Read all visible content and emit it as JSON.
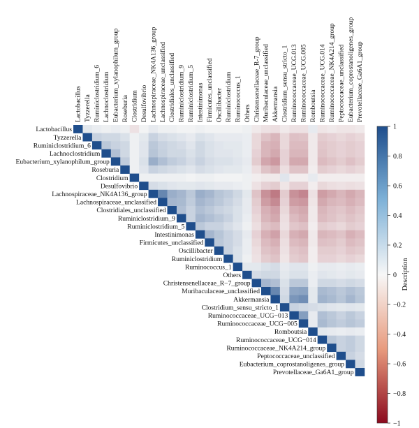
{
  "chart_data": {
    "type": "heatmap",
    "title": "",
    "colorbar_label": "Description",
    "value_range": [
      -1,
      1
    ],
    "colorbar_ticks": [
      1,
      0.8,
      0.6,
      0.4,
      0.2,
      0,
      -0.2,
      -0.4,
      -0.6,
      -0.8,
      -1
    ],
    "colorbar_tick_labels": [
      "1",
      "0.8",
      "0.6",
      "0.4",
      "0.2",
      "0",
      "−0.2",
      "−0.4",
      "−0.6",
      "−0.8",
      "−1"
    ],
    "colors": {
      "positive": "#1f4e8c",
      "neutral": "#f7f7f7",
      "negative": "#8b0a1e"
    },
    "triangle": "upper",
    "labels": [
      "Lactobacillus",
      "Tyzzerella",
      "Ruminiclostridium_6",
      "Lachnoclostridium",
      "Eubacterium_xylanophilum_group",
      "Roseburia",
      "Clostridium",
      "Desulfovibrio",
      "Lachnospiraceae_NK4A136_group",
      "Lachnospiraceae_unclassified",
      "Clostridiales_unclassified",
      "Ruminiclostridium_9",
      "Ruminiclostridium_5",
      "Intestinimonas",
      "Firmicutes_unclassified",
      "Oscillibacter",
      "Ruminiclostridium",
      "Ruminococcus_1",
      "Others",
      "Christensenellaceae_R-7_group",
      "Muribaculaceae_unclassified",
      "Akkermansia",
      "Clostridium_sensu_stricto_1",
      "Ruminococcaceae_UCG-013",
      "Ruminococcaceae_UCG-005",
      "Romboutsia",
      "Ruminococcaceae_UCG-014",
      "Ruminococcaceae_NK4A214_group",
      "Peptococcaceae_unclassified",
      "Eubacterium_coprostanoligenes_group",
      "Prevotellaceae_Ga6A1_group"
    ],
    "row_labels": [
      "Lactobacillus",
      "Tyzzerella",
      "Ruminiclostridium_6",
      "Lachnoclostridium",
      "Eubacterium_xylanophilum_group",
      "Roseburia",
      "Clostridium",
      "Desulfovibrio",
      "Lachnospiraceae_NK4A136_group",
      "Lachnospiraceae_unclassified",
      "Clostridiales_unclassified",
      "Ruminiclostridium_9",
      "Ruminiclostridium_5",
      "Intestinimonas",
      "Firmicutes_unclassified",
      "Oscillibacter",
      "Ruminiclostridium",
      "Ruminococcus_1",
      "Others",
      "Christensenellaceae_R−7_group",
      "Muribaculaceae_unclassified",
      "Akkermansia",
      "Clostridium_sensu_stricto_1",
      "Ruminococcaceae_UCG−013",
      "Ruminococcaceae_UCG−005",
      "Romboutsia",
      "Ruminococcaceae_UCG−014",
      "Ruminococcaceae_NK4A214_group",
      "Peptococcaceae_unclassified",
      "Eubacterium_coprostanoligenes_group",
      "Prevotellaceae_Ga6A1_group"
    ],
    "column_labels": [
      "Lactobacillus",
      "Tyzzerella",
      "Ruminiclostridium_6",
      "Lachnoclostridium",
      "Eubacterium_xylanophilum_group",
      "Roseburia",
      "Clostridium",
      "Desulfovibrio",
      "Lachnospiraceae_NK4A136_group",
      "Lachnospiraceae_unclassified",
      "Clostridiales_unclassified",
      "Ruminiclostridium_9",
      "Ruminiclostridium_5",
      "Intestinimonas",
      "Firmicutes_unclassified",
      "Oscillibacter",
      "Ruminiclostridium",
      "Ruminococcus_1",
      "Others",
      "Christensenellaceae_R-7_group",
      "Muribaculaceae_unclassified",
      "Akkermansia",
      "Clostridium_sensu_stricto_1",
      "Ruminococcaceae_UCG.013",
      "Ruminococcaceae_UCG.005",
      "Romboutsia",
      "Ruminococcaceae_UCG.014",
      "Ruminococcaceae_NK4A214_group",
      "Peptococcaceae_unclassified",
      "Eubacterium_coprostanoligenes_group",
      "Prevotellaceae_Ga6A1_group"
    ],
    "values": [
      [
        1,
        0.05,
        0.03,
        0.02,
        0.03,
        0.02,
        -0.05,
        0.01,
        0.04,
        0.02,
        0.02,
        0.01,
        0.01,
        0.02,
        0.01,
        0.01,
        0.01,
        0.01,
        0.02,
        -0.03,
        -0.05,
        -0.06,
        -0.03,
        -0.05,
        -0.05,
        0.04,
        -0.04,
        -0.03,
        -0.04,
        -0.04,
        -0.03
      ],
      [
        0.05,
        1,
        0.15,
        0.12,
        0.12,
        0.08,
        0.02,
        0.05,
        0.15,
        0.1,
        0.08,
        0.06,
        0.04,
        0.08,
        0.06,
        0.04,
        0.04,
        0.04,
        0.03,
        -0.08,
        -0.15,
        -0.2,
        -0.08,
        -0.16,
        -0.15,
        -0.03,
        -0.12,
        -0.1,
        -0.08,
        -0.1,
        -0.08
      ],
      [
        0.03,
        0.15,
        1,
        0.2,
        0.15,
        0.12,
        0.02,
        0.06,
        0.2,
        0.15,
        0.12,
        0.1,
        0.06,
        0.12,
        0.08,
        0.06,
        0.05,
        0.05,
        0.03,
        -0.08,
        -0.2,
        -0.22,
        -0.08,
        -0.18,
        -0.18,
        -0.03,
        -0.14,
        -0.12,
        -0.1,
        -0.12,
        -0.1
      ],
      [
        0.02,
        0.12,
        0.2,
        1,
        0.25,
        0.12,
        0.02,
        0.06,
        0.22,
        0.16,
        0.12,
        0.12,
        0.08,
        0.12,
        0.08,
        0.06,
        0.06,
        0.05,
        0.03,
        -0.1,
        -0.2,
        -0.25,
        -0.1,
        -0.2,
        -0.2,
        -0.03,
        -0.15,
        -0.12,
        -0.1,
        -0.12,
        -0.1
      ],
      [
        0.03,
        0.12,
        0.15,
        0.25,
        1,
        0.18,
        0.02,
        0.08,
        0.35,
        0.25,
        0.18,
        0.15,
        0.1,
        0.15,
        0.1,
        0.08,
        0.08,
        0.06,
        0.04,
        -0.12,
        -0.26,
        -0.32,
        -0.1,
        -0.25,
        -0.25,
        -0.03,
        -0.18,
        -0.15,
        -0.12,
        -0.16,
        -0.12
      ],
      [
        0.02,
        0.08,
        0.12,
        0.12,
        0.18,
        1,
        0.02,
        0.06,
        0.15,
        0.12,
        0.1,
        0.08,
        0.06,
        0.1,
        0.08,
        0.06,
        0.05,
        0.05,
        0.03,
        -0.06,
        -0.15,
        -0.2,
        -0.06,
        -0.15,
        -0.15,
        -0.02,
        -0.12,
        -0.1,
        -0.08,
        -0.1,
        -0.08
      ],
      [
        -0.05,
        0.02,
        0.02,
        0.02,
        0.02,
        0.02,
        1,
        0.02,
        0.02,
        0.02,
        0.02,
        0.02,
        0.01,
        0.02,
        0.02,
        0.01,
        0.01,
        0.01,
        0.02,
        -0.02,
        -0.03,
        -0.03,
        0.06,
        -0.02,
        -0.02,
        0.04,
        -0.02,
        -0.02,
        -0.02,
        -0.02,
        -0.02
      ],
      [
        0.01,
        0.05,
        0.06,
        0.06,
        0.08,
        0.06,
        0.02,
        1,
        0.1,
        0.08,
        0.06,
        0.05,
        0.05,
        0.06,
        0.05,
        0.04,
        0.04,
        0.03,
        0.02,
        -0.05,
        -0.1,
        -0.12,
        -0.04,
        -0.1,
        -0.1,
        -0.02,
        -0.08,
        -0.06,
        -0.05,
        -0.06,
        -0.05
      ],
      [
        0.04,
        0.15,
        0.2,
        0.22,
        0.35,
        0.15,
        0.02,
        0.1,
        1,
        0.6,
        0.35,
        0.3,
        0.2,
        0.35,
        0.3,
        0.22,
        0.18,
        0.12,
        0.05,
        -0.15,
        -0.35,
        -0.45,
        -0.12,
        -0.35,
        -0.4,
        -0.05,
        -0.3,
        -0.25,
        -0.2,
        -0.25,
        -0.2
      ],
      [
        0.02,
        0.1,
        0.15,
        0.16,
        0.25,
        0.12,
        0.02,
        0.08,
        0.6,
        1,
        0.3,
        0.28,
        0.18,
        0.3,
        0.25,
        0.2,
        0.15,
        0.1,
        0.04,
        -0.12,
        -0.3,
        -0.38,
        -0.1,
        -0.3,
        -0.32,
        -0.04,
        -0.25,
        -0.2,
        -0.18,
        -0.22,
        -0.18
      ],
      [
        0.02,
        0.08,
        0.12,
        0.12,
        0.18,
        0.1,
        0.02,
        0.06,
        0.35,
        0.3,
        1,
        0.25,
        0.15,
        0.25,
        0.2,
        0.15,
        0.12,
        0.08,
        0.04,
        -0.1,
        -0.22,
        -0.28,
        -0.08,
        -0.22,
        -0.25,
        -0.03,
        -0.2,
        -0.16,
        -0.14,
        -0.18,
        -0.14
      ],
      [
        0.01,
        0.06,
        0.1,
        0.12,
        0.15,
        0.08,
        0.02,
        0.05,
        0.3,
        0.28,
        0.25,
        1,
        0.15,
        0.3,
        0.25,
        0.2,
        0.15,
        0.08,
        0.03,
        -0.08,
        -0.2,
        -0.25,
        -0.06,
        -0.18,
        -0.22,
        -0.03,
        -0.18,
        -0.15,
        -0.12,
        -0.15,
        -0.12
      ],
      [
        0.01,
        0.04,
        0.06,
        0.08,
        0.1,
        0.06,
        0.01,
        0.05,
        0.2,
        0.18,
        0.15,
        0.15,
        1,
        0.2,
        0.15,
        0.15,
        0.1,
        0.06,
        0.02,
        -0.06,
        -0.15,
        -0.18,
        -0.05,
        -0.14,
        -0.16,
        -0.02,
        -0.12,
        -0.1,
        -0.08,
        -0.12,
        -0.1
      ],
      [
        0.02,
        0.08,
        0.12,
        0.12,
        0.15,
        0.1,
        0.02,
        0.06,
        0.35,
        0.3,
        0.25,
        0.3,
        0.2,
        1,
        0.3,
        0.22,
        0.15,
        0.1,
        0.04,
        -0.1,
        -0.22,
        -0.28,
        -0.08,
        -0.22,
        -0.25,
        -0.03,
        -0.2,
        -0.18,
        -0.15,
        -0.22,
        -0.18
      ],
      [
        0.01,
        0.06,
        0.08,
        0.08,
        0.1,
        0.08,
        0.02,
        0.05,
        0.3,
        0.25,
        0.2,
        0.25,
        0.15,
        0.3,
        1,
        0.2,
        0.15,
        0.1,
        0.03,
        -0.08,
        -0.18,
        -0.22,
        -0.06,
        -0.18,
        -0.2,
        -0.03,
        -0.16,
        -0.15,
        -0.12,
        -0.18,
        -0.15
      ],
      [
        0.01,
        0.04,
        0.06,
        0.06,
        0.08,
        0.06,
        0.01,
        0.04,
        0.22,
        0.2,
        0.15,
        0.2,
        0.15,
        0.22,
        0.2,
        1,
        0.15,
        0.08,
        0.03,
        -0.06,
        -0.15,
        -0.18,
        -0.05,
        -0.14,
        -0.16,
        -0.02,
        -0.12,
        -0.12,
        -0.1,
        -0.14,
        -0.12
      ],
      [
        0.01,
        0.04,
        0.05,
        0.06,
        0.08,
        0.05,
        0.01,
        0.04,
        0.18,
        0.15,
        0.12,
        0.15,
        0.1,
        0.15,
        0.15,
        0.15,
        1,
        0.08,
        0.02,
        -0.05,
        -0.12,
        -0.15,
        -0.04,
        -0.12,
        -0.14,
        -0.02,
        -0.1,
        -0.1,
        -0.08,
        -0.1,
        -0.08
      ],
      [
        0.01,
        0.04,
        0.05,
        0.05,
        0.06,
        0.05,
        0.01,
        0.03,
        0.12,
        0.1,
        0.08,
        0.08,
        0.06,
        0.1,
        0.1,
        0.08,
        0.08,
        1,
        0.05,
        0.05,
        0.08,
        0.1,
        0.04,
        0.06,
        0.06,
        0.02,
        0.04,
        0.04,
        0.03,
        0.04,
        0.03
      ],
      [
        0.02,
        0.03,
        0.03,
        0.03,
        0.04,
        0.03,
        0.02,
        0.02,
        0.05,
        0.04,
        0.04,
        0.03,
        0.02,
        0.04,
        0.03,
        0.03,
        0.02,
        0.05,
        1,
        0.1,
        0.12,
        0.12,
        0.05,
        0.08,
        0.08,
        0.03,
        0.06,
        0.05,
        0.04,
        0.05,
        0.04
      ],
      [
        -0.03,
        -0.08,
        -0.08,
        -0.1,
        -0.12,
        -0.06,
        -0.02,
        -0.05,
        -0.15,
        -0.12,
        -0.1,
        -0.08,
        -0.06,
        -0.1,
        -0.08,
        -0.06,
        -0.05,
        0.05,
        0.1,
        1,
        0.3,
        0.25,
        0.08,
        0.2,
        0.2,
        0.03,
        0.12,
        0.12,
        0.1,
        0.12,
        0.1
      ],
      [
        -0.05,
        -0.15,
        -0.2,
        -0.2,
        -0.26,
        -0.15,
        -0.03,
        -0.1,
        -0.35,
        -0.3,
        -0.22,
        -0.2,
        -0.15,
        -0.22,
        -0.18,
        -0.15,
        -0.12,
        0.08,
        0.12,
        0.3,
        1,
        0.6,
        0.1,
        0.4,
        0.42,
        0.05,
        0.28,
        0.25,
        0.2,
        0.25,
        0.2
      ],
      [
        -0.06,
        -0.2,
        -0.22,
        -0.25,
        -0.32,
        -0.2,
        -0.03,
        -0.12,
        -0.45,
        -0.38,
        -0.28,
        -0.25,
        -0.18,
        -0.28,
        -0.22,
        -0.18,
        -0.15,
        0.1,
        0.12,
        0.25,
        0.6,
        1,
        0.12,
        0.5,
        0.55,
        0.05,
        0.32,
        0.28,
        0.22,
        0.3,
        0.22
      ],
      [
        -0.03,
        -0.08,
        -0.08,
        -0.1,
        -0.1,
        -0.06,
        0.06,
        -0.04,
        -0.12,
        -0.1,
        -0.08,
        -0.06,
        -0.05,
        -0.08,
        -0.06,
        -0.05,
        -0.04,
        0.04,
        0.05,
        0.08,
        0.1,
        0.12,
        1,
        0.15,
        0.12,
        0.1,
        0.08,
        0.06,
        0.05,
        0.06,
        0.05
      ],
      [
        -0.05,
        -0.16,
        -0.18,
        -0.2,
        -0.25,
        -0.15,
        -0.02,
        -0.1,
        -0.35,
        -0.3,
        -0.22,
        -0.18,
        -0.14,
        -0.22,
        -0.18,
        -0.14,
        -0.12,
        0.06,
        0.08,
        0.2,
        0.4,
        0.5,
        0.15,
        1,
        0.45,
        0.04,
        0.25,
        0.2,
        0.15,
        0.2,
        0.15
      ],
      [
        -0.05,
        -0.15,
        -0.18,
        -0.2,
        -0.25,
        -0.15,
        -0.02,
        -0.1,
        -0.4,
        -0.32,
        -0.25,
        -0.22,
        -0.16,
        -0.25,
        -0.2,
        -0.16,
        -0.14,
        0.06,
        0.08,
        0.2,
        0.42,
        0.55,
        0.12,
        0.45,
        1,
        0.04,
        0.28,
        0.22,
        0.18,
        0.22,
        0.18
      ],
      [
        0.04,
        -0.03,
        -0.03,
        -0.03,
        -0.03,
        -0.02,
        0.04,
        -0.02,
        -0.05,
        -0.04,
        -0.03,
        -0.03,
        -0.02,
        -0.03,
        -0.03,
        -0.02,
        -0.02,
        0.02,
        0.03,
        0.03,
        0.05,
        0.05,
        0.1,
        0.04,
        0.04,
        1,
        0.05,
        0.04,
        0.03,
        0.04,
        0.03
      ],
      [
        -0.04,
        -0.12,
        -0.14,
        -0.15,
        -0.18,
        -0.12,
        -0.02,
        -0.08,
        -0.3,
        -0.25,
        -0.2,
        -0.18,
        -0.12,
        -0.2,
        -0.16,
        -0.12,
        -0.1,
        0.04,
        0.06,
        0.12,
        0.28,
        0.32,
        0.08,
        0.25,
        0.28,
        0.05,
        1,
        0.2,
        0.15,
        0.18,
        0.12
      ],
      [
        -0.03,
        -0.1,
        -0.12,
        -0.12,
        -0.15,
        -0.1,
        -0.02,
        -0.06,
        -0.25,
        -0.2,
        -0.16,
        -0.15,
        -0.1,
        -0.18,
        -0.15,
        -0.12,
        -0.1,
        0.04,
        0.05,
        0.12,
        0.25,
        0.28,
        0.06,
        0.2,
        0.22,
        0.04,
        0.2,
        1,
        0.15,
        0.18,
        0.12
      ],
      [
        -0.04,
        -0.08,
        -0.1,
        -0.1,
        -0.12,
        -0.08,
        -0.02,
        -0.05,
        -0.2,
        -0.18,
        -0.14,
        -0.12,
        -0.08,
        -0.15,
        -0.12,
        -0.1,
        -0.08,
        0.03,
        0.04,
        0.1,
        0.2,
        0.22,
        0.05,
        0.15,
        0.18,
        0.03,
        0.15,
        0.15,
        1,
        0.15,
        0.1
      ],
      [
        -0.04,
        -0.1,
        -0.12,
        -0.12,
        -0.16,
        -0.1,
        -0.02,
        -0.06,
        -0.25,
        -0.22,
        -0.18,
        -0.15,
        -0.12,
        -0.22,
        -0.18,
        -0.14,
        -0.1,
        0.04,
        0.05,
        0.12,
        0.25,
        0.3,
        0.06,
        0.2,
        0.22,
        0.04,
        0.18,
        0.18,
        0.15,
        1,
        0.12
      ],
      [
        -0.03,
        -0.08,
        -0.1,
        -0.1,
        -0.12,
        -0.08,
        -0.02,
        -0.05,
        -0.2,
        -0.18,
        -0.14,
        -0.12,
        -0.1,
        -0.18,
        -0.15,
        -0.12,
        -0.08,
        0.03,
        0.04,
        0.1,
        0.2,
        0.22,
        0.05,
        0.15,
        0.18,
        0.03,
        0.12,
        0.12,
        0.1,
        0.12,
        1
      ]
    ]
  }
}
